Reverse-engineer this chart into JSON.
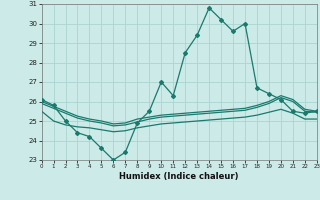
{
  "xlabel": "Humidex (Indice chaleur)",
  "bg_color": "#cceae7",
  "grid_color": "#aad4d0",
  "line_color": "#1a7a6e",
  "x": [
    0,
    1,
    2,
    3,
    4,
    5,
    6,
    7,
    8,
    9,
    10,
    11,
    12,
    13,
    14,
    15,
    16,
    17,
    18,
    19,
    20,
    21,
    22,
    23
  ],
  "line1": [
    26.1,
    25.8,
    25.0,
    24.4,
    24.2,
    23.6,
    23.0,
    23.4,
    24.9,
    25.5,
    27.0,
    26.3,
    28.5,
    29.4,
    30.8,
    30.2,
    29.6,
    30.0,
    26.7,
    26.4,
    26.1,
    25.5,
    25.4,
    25.5
  ],
  "line2": [
    26.0,
    25.75,
    25.5,
    25.25,
    25.1,
    25.0,
    24.85,
    24.9,
    25.1,
    25.2,
    25.3,
    25.35,
    25.4,
    25.45,
    25.5,
    25.55,
    25.6,
    25.65,
    25.8,
    26.0,
    26.3,
    26.1,
    25.6,
    25.5
  ],
  "line3": [
    25.9,
    25.65,
    25.4,
    25.15,
    25.0,
    24.9,
    24.75,
    24.8,
    24.95,
    25.1,
    25.2,
    25.25,
    25.3,
    25.35,
    25.4,
    25.45,
    25.5,
    25.55,
    25.7,
    25.9,
    26.2,
    26.0,
    25.5,
    25.45
  ],
  "line4": [
    25.5,
    25.0,
    24.8,
    24.7,
    24.65,
    24.55,
    24.45,
    24.5,
    24.65,
    24.75,
    24.85,
    24.9,
    24.95,
    25.0,
    25.05,
    25.1,
    25.15,
    25.2,
    25.3,
    25.45,
    25.6,
    25.4,
    25.1,
    25.1
  ],
  "ylim": [
    23,
    31
  ],
  "xlim": [
    0,
    23
  ],
  "yticks": [
    23,
    24,
    25,
    26,
    27,
    28,
    29,
    30,
    31
  ],
  "xticks": [
    0,
    1,
    2,
    3,
    4,
    5,
    6,
    7,
    8,
    9,
    10,
    11,
    12,
    13,
    14,
    15,
    16,
    17,
    18,
    19,
    20,
    21,
    22,
    23
  ]
}
